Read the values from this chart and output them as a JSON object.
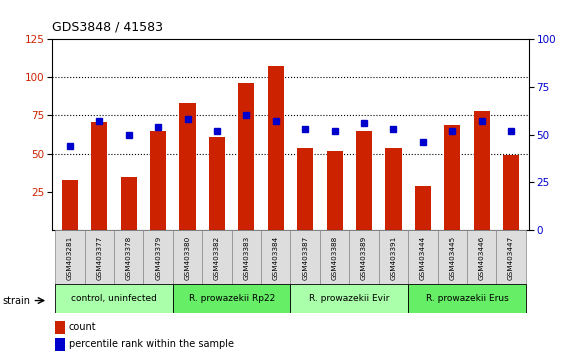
{
  "title": "GDS3848 / 41583",
  "samples": [
    "GSM403281",
    "GSM403377",
    "GSM403378",
    "GSM403379",
    "GSM403380",
    "GSM403382",
    "GSM403383",
    "GSM403384",
    "GSM403387",
    "GSM403388",
    "GSM403389",
    "GSM403391",
    "GSM403444",
    "GSM403445",
    "GSM403446",
    "GSM403447"
  ],
  "counts": [
    33,
    71,
    35,
    65,
    83,
    61,
    96,
    107,
    54,
    52,
    65,
    54,
    29,
    69,
    78,
    49
  ],
  "percentile_ranks": [
    44,
    57,
    50,
    54,
    58,
    52,
    60,
    57,
    53,
    52,
    56,
    53,
    46,
    52,
    57,
    52
  ],
  "groups": [
    {
      "label": "control, uninfected",
      "start": 0,
      "end": 3,
      "color": "#aaffaa"
    },
    {
      "label": "R. prowazekii Rp22",
      "start": 4,
      "end": 7,
      "color": "#66ee66"
    },
    {
      "label": "R. prowazekii Evir",
      "start": 8,
      "end": 11,
      "color": "#aaffaa"
    },
    {
      "label": "R. prowazekii Erus",
      "start": 12,
      "end": 15,
      "color": "#66ee66"
    }
  ],
  "left_ylim": [
    0,
    125
  ],
  "left_yticks": [
    25,
    50,
    75,
    100,
    125
  ],
  "right_ylim": [
    0,
    100
  ],
  "right_yticks": [
    0,
    25,
    50,
    75,
    100
  ],
  "bar_color": "#cc2200",
  "dot_color": "#0000cc",
  "bar_width": 0.55,
  "bg_color": "#ffffff",
  "tick_label_color_left": "#cc2200",
  "tick_label_color_right": "#0000cc",
  "legend_items": [
    "count",
    "percentile rank within the sample"
  ],
  "strain_label": "strain"
}
